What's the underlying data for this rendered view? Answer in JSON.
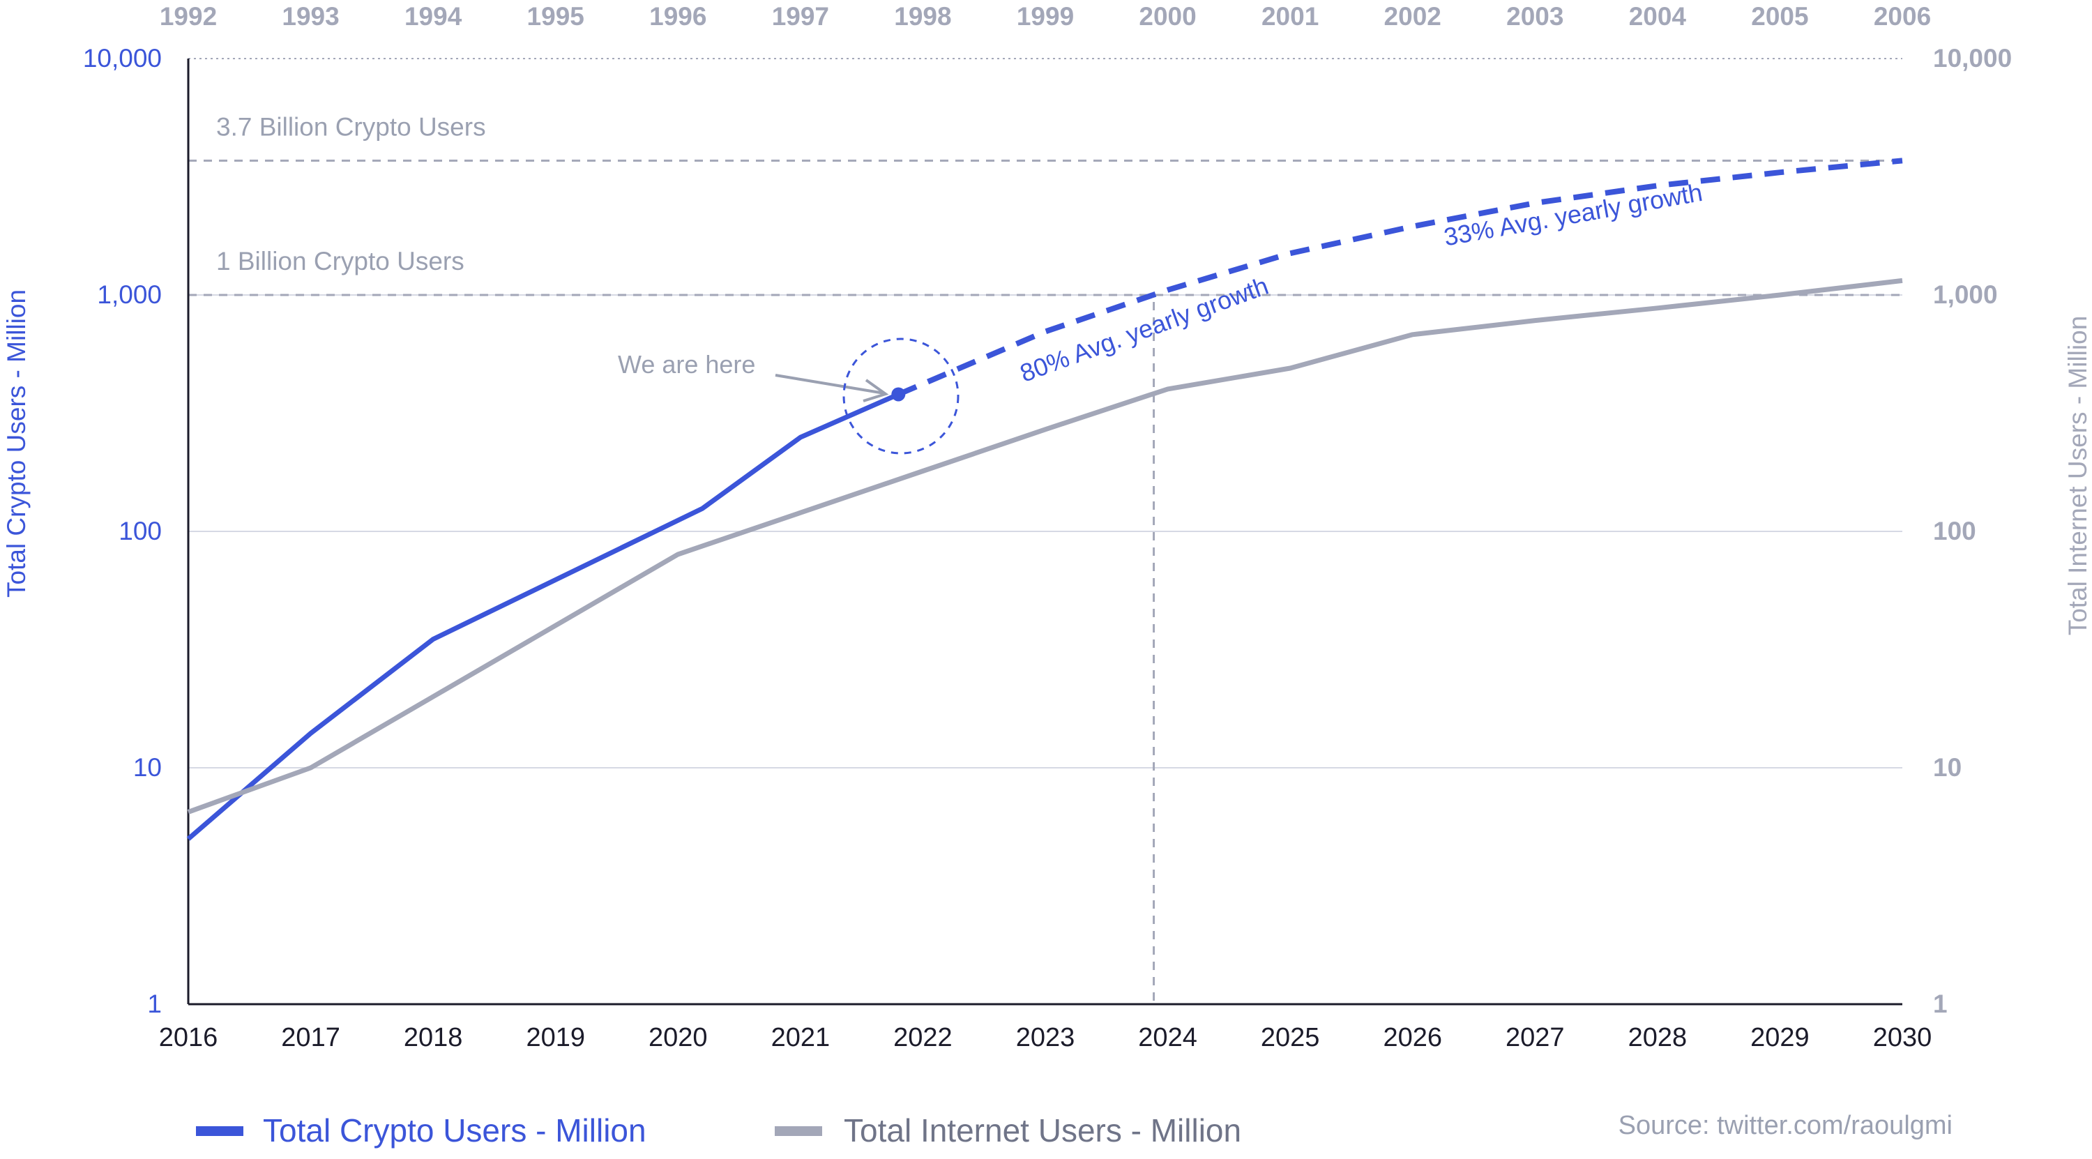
{
  "chart_data": {
    "type": "line",
    "title": "",
    "x_bottom": {
      "label": "",
      "ticks": [
        "2016",
        "2017",
        "2018",
        "2019",
        "2020",
        "2021",
        "2022",
        "2023",
        "2024",
        "2025",
        "2026",
        "2027",
        "2028",
        "2029",
        "2030"
      ],
      "range": [
        2016,
        2030
      ]
    },
    "x_top": {
      "label": "",
      "ticks": [
        "1992",
        "1993",
        "1994",
        "1995",
        "1996",
        "1997",
        "1998",
        "1999",
        "2000",
        "2001",
        "2002",
        "2003",
        "2004",
        "2005",
        "2006"
      ],
      "range": [
        1992,
        2006
      ]
    },
    "y_left": {
      "label": "Total Crypto Users - Million",
      "scale": "log",
      "ticks": [
        "1",
        "10",
        "100",
        "1,000",
        "10,000"
      ],
      "range": [
        1,
        10000
      ]
    },
    "y_right": {
      "label": "Total Internet Users - Million",
      "scale": "log",
      "ticks": [
        "1",
        "10",
        "100",
        "1,000",
        "10,000"
      ],
      "range": [
        1,
        10000
      ]
    },
    "series": [
      {
        "name": "Total Crypto Users - Million",
        "color": "#3b55d9",
        "style": "solid",
        "axis": "bottom-left",
        "x": [
          2016,
          2017,
          2018,
          2020.2,
          2021,
          2021.8
        ],
        "y": [
          5,
          14,
          35,
          125,
          250,
          380
        ]
      },
      {
        "name": "",
        "color": "#3b55d9",
        "style": "dashed",
        "axis": "bottom-left",
        "x": [
          2021.8,
          2023,
          2024,
          2025,
          2026,
          2027,
          2028,
          2029,
          2030
        ],
        "y": [
          380,
          700,
          1050,
          1500,
          1950,
          2450,
          2900,
          3300,
          3700
        ]
      },
      {
        "name": "Total Internet Users - Million",
        "color": "#a3a7b8",
        "style": "solid",
        "axis": "top-right",
        "x": [
          1992,
          1993,
          1994,
          1996,
          1997,
          1998,
          1999,
          2000,
          2001,
          2002,
          2003,
          2004,
          2005,
          2006
        ],
        "y": [
          6.5,
          10,
          20,
          80,
          120,
          180,
          270,
          400,
          490,
          680,
          780,
          880,
          1000,
          1150
        ]
      }
    ],
    "reference_lines": [
      {
        "label": "3.7 Billion Crypto Users",
        "y": 3700
      },
      {
        "label": "1 Billion Crypto Users",
        "y": 1000
      }
    ],
    "vertical_marker": {
      "x": 2024
    },
    "annotations": {
      "we_are_here": "We are here",
      "growth_80": "80% Avg. yearly growth",
      "growth_33": "33% Avg. yearly growth"
    },
    "legend": {
      "placement": "bottom-left",
      "crypto": "Total Crypto Users - Million",
      "internet": "Total Internet Users - Million"
    },
    "source": "Source: twitter.com/raoulgmi",
    "grid": true
  }
}
